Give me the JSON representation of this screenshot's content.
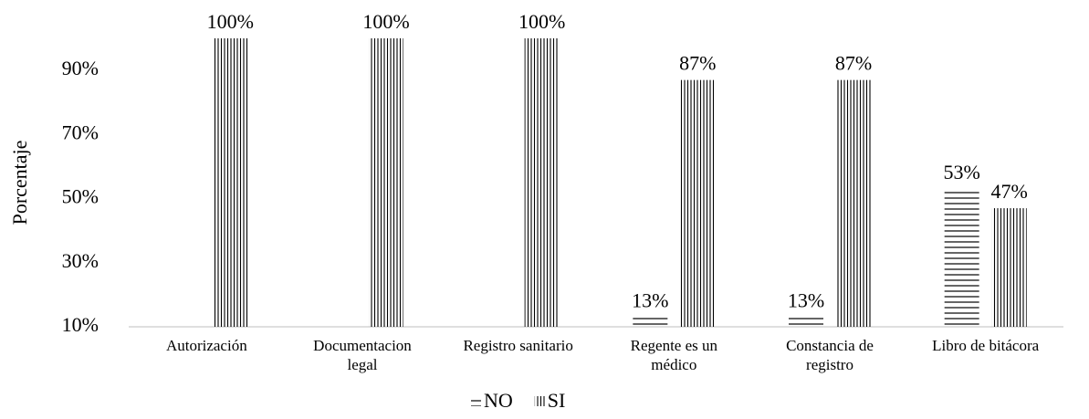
{
  "chart_data": {
    "type": "bar",
    "y_label": "Porcentaje",
    "categories": [
      "Autorización",
      "Documentacion legal",
      "Registro sanitario",
      "Regente es un médico",
      "Constancia de registro",
      "Libro de bitácora"
    ],
    "series": [
      {
        "name": "NO",
        "color": "#000000",
        "values": [
          0,
          0,
          0,
          13,
          13,
          53
        ],
        "value_labels": [
          null,
          null,
          null,
          "13%",
          "13%",
          "53%"
        ]
      },
      {
        "name": "SI",
        "color": "#000000",
        "values": [
          100,
          100,
          100,
          87,
          87,
          47
        ],
        "value_labels": [
          "100%",
          "100%",
          "100%",
          "87%",
          "87%",
          "47%"
        ]
      }
    ],
    "ylim": [
      10,
      100
    ],
    "yticks": [
      {
        "value": 10,
        "label": "10%"
      },
      {
        "value": 30,
        "label": "30%"
      },
      {
        "value": 50,
        "label": "50%"
      },
      {
        "value": 70,
        "label": "70%"
      },
      {
        "value": 90,
        "label": "90%"
      }
    ],
    "grid": false,
    "legend": "bottom"
  }
}
